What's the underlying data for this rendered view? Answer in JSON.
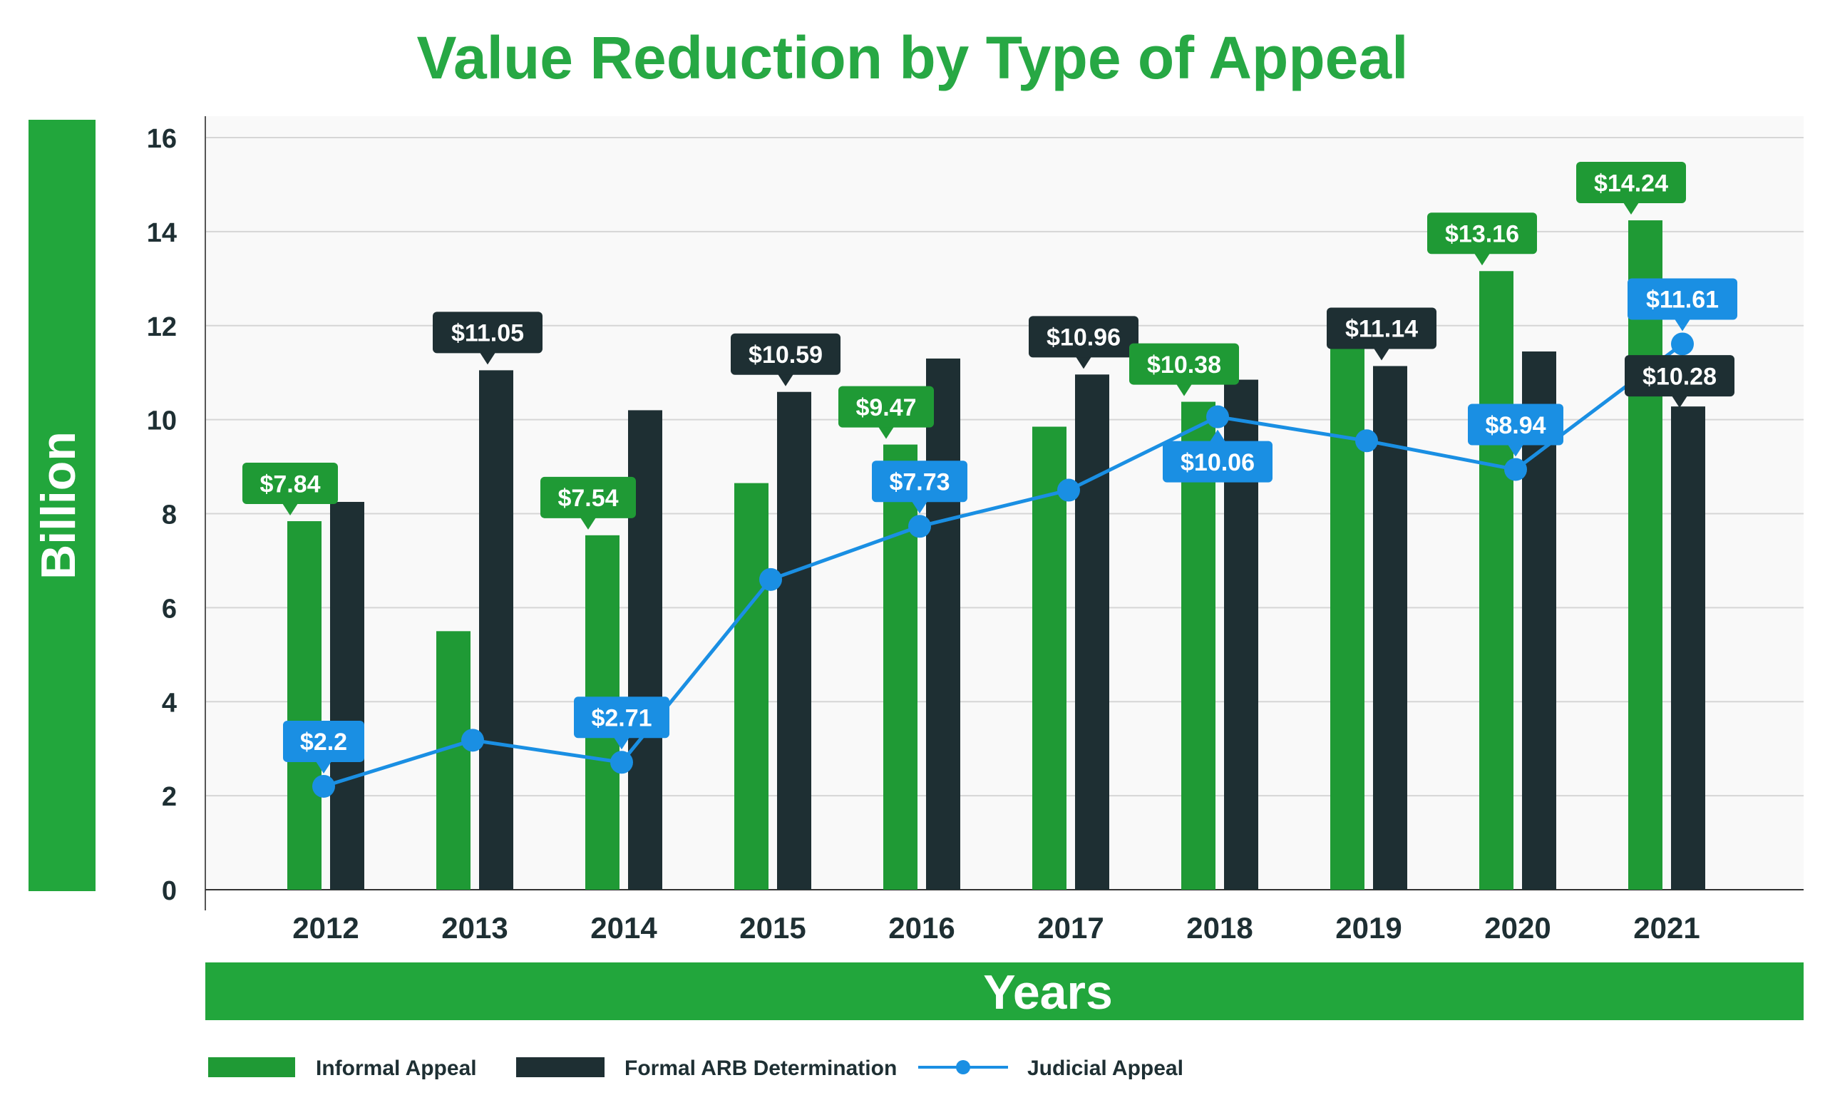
{
  "chart_data": {
    "type": "bar",
    "title": "Value Reduction by Type of Appeal",
    "xlabel": "Years",
    "ylabel": "Billion",
    "categories": [
      "2012",
      "2013",
      "2014",
      "2015",
      "2016",
      "2017",
      "2018",
      "2019",
      "2020",
      "2021"
    ],
    "ylim": [
      0,
      16
    ],
    "yticks": [
      "0",
      "2",
      "4",
      "6",
      "8",
      "10",
      "12",
      "14",
      "16"
    ],
    "grid": true,
    "legend_position": "bottom-left",
    "series": [
      {
        "name": "Informal Appeal",
        "type": "bar",
        "color": "#1f9a35",
        "values": [
          7.84,
          5.5,
          7.54,
          8.65,
          9.47,
          9.85,
          10.38,
          11.7,
          13.16,
          14.24
        ],
        "labels": [
          "$7.84",
          "",
          "$7.54",
          "",
          "$9.47",
          "",
          "$10.38",
          "",
          "$13.16",
          "$14.24"
        ]
      },
      {
        "name": "Formal ARB Determination",
        "type": "bar",
        "color": "#1e2f33",
        "values": [
          8.25,
          11.05,
          10.2,
          10.59,
          11.3,
          10.96,
          10.85,
          11.14,
          11.45,
          10.28
        ],
        "labels": [
          "",
          "$11.05",
          "",
          "$10.59",
          "",
          "$10.96",
          "",
          "$11.14",
          "",
          "$10.28"
        ]
      },
      {
        "name": "Judicial Appeal",
        "type": "line",
        "color": "#1a8fe3",
        "values": [
          2.2,
          3.18,
          2.71,
          6.6,
          7.73,
          8.5,
          10.06,
          9.55,
          8.94,
          11.61
        ],
        "labels": [
          "$2.2",
          "",
          "$2.71",
          "",
          "$7.73",
          "",
          "$10.06",
          "",
          "$8.94",
          "$11.61"
        ]
      }
    ]
  },
  "colors": {
    "title": "#27a844",
    "accent_band": "#22a63c",
    "axis_text": "#1e2f33",
    "plot_bg": "#f9f9f9",
    "grid": "#d6d6d6"
  }
}
